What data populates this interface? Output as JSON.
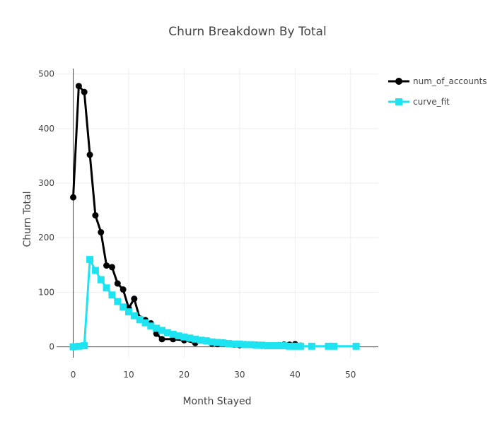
{
  "chart_data": {
    "type": "line",
    "title": "Churn Breakdown By Total",
    "xlabel": "Month Stayed",
    "ylabel": "Churn Total",
    "xlim": [
      -3,
      55
    ],
    "ylim": [
      -20,
      510
    ],
    "xticks": [
      0,
      10,
      20,
      30,
      40,
      50
    ],
    "yticks": [
      0,
      100,
      200,
      300,
      400,
      500
    ],
    "grid": true,
    "legend_position": "top-right",
    "series": [
      {
        "name": "num_of_accounts",
        "color": "#000000",
        "marker": "circle",
        "x": [
          0,
          1,
          2,
          3,
          4,
          5,
          6,
          7,
          8,
          9,
          10,
          11,
          12,
          13,
          14,
          15,
          16,
          18,
          20,
          22,
          23,
          25,
          26,
          27,
          29,
          30,
          31,
          33,
          34,
          35,
          36,
          37,
          38,
          39,
          40,
          41
        ],
        "y": [
          274,
          478,
          467,
          352,
          241,
          210,
          149,
          146,
          116,
          105,
          71,
          88,
          52,
          49,
          43,
          24,
          14,
          14,
          12,
          7,
          12,
          6,
          5,
          8,
          4,
          3,
          5,
          4,
          2,
          2,
          2,
          3,
          4,
          4,
          5,
          2
        ]
      },
      {
        "name": "curve_fit",
        "color": "#1ee4f2",
        "marker": "square",
        "x": [
          0,
          1,
          2,
          3,
          4,
          5,
          6,
          7,
          8,
          9,
          10,
          11,
          12,
          13,
          14,
          15,
          16,
          17,
          18,
          19,
          20,
          21,
          22,
          23,
          24,
          25,
          26,
          27,
          28,
          29,
          30,
          31,
          32,
          33,
          34,
          35,
          36,
          37,
          38,
          39,
          40,
          41,
          43,
          46,
          47,
          51
        ],
        "y": [
          0,
          1,
          2,
          160,
          140,
          123,
          108,
          95,
          83,
          73,
          64,
          57,
          50,
          44,
          38,
          34,
          30,
          26,
          23,
          20,
          18,
          16,
          14,
          12,
          11,
          9,
          8,
          7,
          6,
          5,
          5,
          4,
          4,
          3,
          3,
          2,
          2,
          2,
          2,
          1,
          1,
          1,
          1,
          1,
          1,
          1
        ]
      }
    ]
  }
}
